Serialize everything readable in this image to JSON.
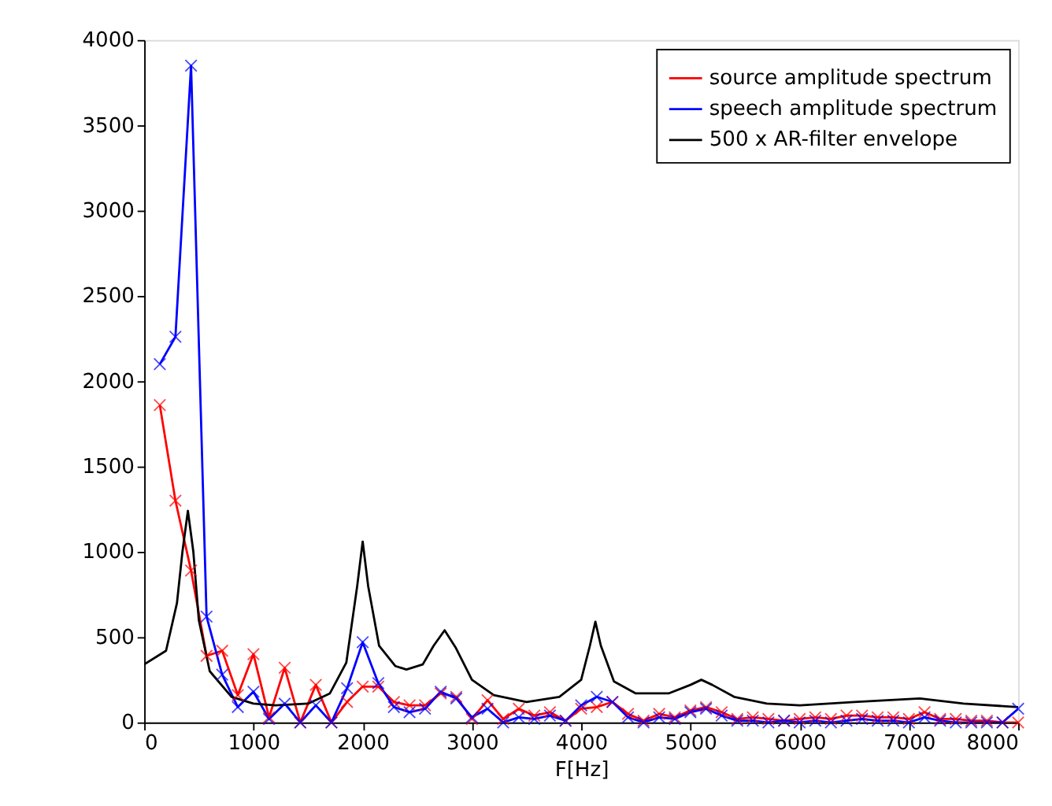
{
  "chart_data": {
    "type": "line",
    "xlabel": "F[Hz]",
    "xlim": [
      0,
      8000
    ],
    "ylim": [
      0,
      4000
    ],
    "xticks": [
      0,
      1000,
      2000,
      3000,
      4000,
      5000,
      6000,
      7000,
      8000
    ],
    "yticks": [
      0,
      500,
      1000,
      1500,
      2000,
      2500,
      3000,
      3500,
      4000
    ],
    "grid": false,
    "legend": "top right",
    "x": [
      143,
      286,
      429,
      571,
      714,
      857,
      1000,
      1143,
      1286,
      1429,
      1571,
      1714,
      1857,
      2000,
      2143,
      2286,
      2429,
      2571,
      2714,
      2857,
      3000,
      3143,
      3286,
      3429,
      3571,
      3714,
      3857,
      4000,
      4143,
      4286,
      4429,
      4571,
      4714,
      4857,
      5000,
      5143,
      5286,
      5429,
      5571,
      5714,
      5857,
      6000,
      6143,
      6286,
      6429,
      6571,
      6714,
      6857,
      7000,
      7143,
      7286,
      7429,
      7571,
      7714,
      7857,
      8000
    ],
    "series": [
      {
        "name": "source amplitude spectrum",
        "color": "#ff0000",
        "marker": "cross",
        "values": [
          1860,
          1300,
          890,
          390,
          420,
          160,
          400,
          30,
          320,
          0,
          220,
          0,
          120,
          210,
          210,
          120,
          100,
          100,
          170,
          150,
          20,
          130,
          20,
          80,
          40,
          60,
          10,
          80,
          90,
          120,
          50,
          10,
          50,
          30,
          70,
          90,
          60,
          20,
          30,
          20,
          10,
          20,
          30,
          20,
          40,
          40,
          30,
          30,
          20,
          60,
          20,
          20,
          10,
          10,
          0,
          0
        ]
      },
      {
        "name": "speech amplitude spectrum",
        "color": "#0000ff",
        "marker": "cross",
        "values": [
          2100,
          2260,
          3850,
          620,
          280,
          90,
          180,
          20,
          110,
          0,
          100,
          0,
          200,
          470,
          230,
          90,
          60,
          80,
          180,
          140,
          30,
          80,
          0,
          30,
          20,
          40,
          10,
          100,
          150,
          120,
          30,
          0,
          30,
          20,
          60,
          80,
          40,
          10,
          10,
          0,
          10,
          0,
          10,
          0,
          10,
          20,
          10,
          10,
          0,
          30,
          10,
          0,
          0,
          0,
          0,
          80
        ]
      },
      {
        "name": "500 x AR-filter envelope",
        "color": "#000000",
        "marker": "none",
        "x": [
          0,
          200,
          300,
          350,
          400,
          450,
          500,
          600,
          800,
          1000,
          1200,
          1500,
          1700,
          1850,
          1950,
          2000,
          2050,
          2150,
          2300,
          2400,
          2550,
          2650,
          2750,
          2850,
          3000,
          3200,
          3500,
          3800,
          4000,
          4080,
          4130,
          4180,
          4300,
          4500,
          4800,
          5000,
          5100,
          5200,
          5400,
          5700,
          6000,
          6500,
          7100,
          7500,
          8000
        ],
        "values": [
          340,
          420,
          700,
          1000,
          1240,
          1000,
          600,
          300,
          150,
          110,
          100,
          110,
          170,
          350,
          800,
          1060,
          800,
          450,
          330,
          310,
          340,
          450,
          540,
          440,
          250,
          160,
          120,
          150,
          250,
          450,
          590,
          450,
          240,
          170,
          170,
          220,
          250,
          220,
          150,
          110,
          100,
          120,
          140,
          110,
          90
        ]
      }
    ]
  }
}
